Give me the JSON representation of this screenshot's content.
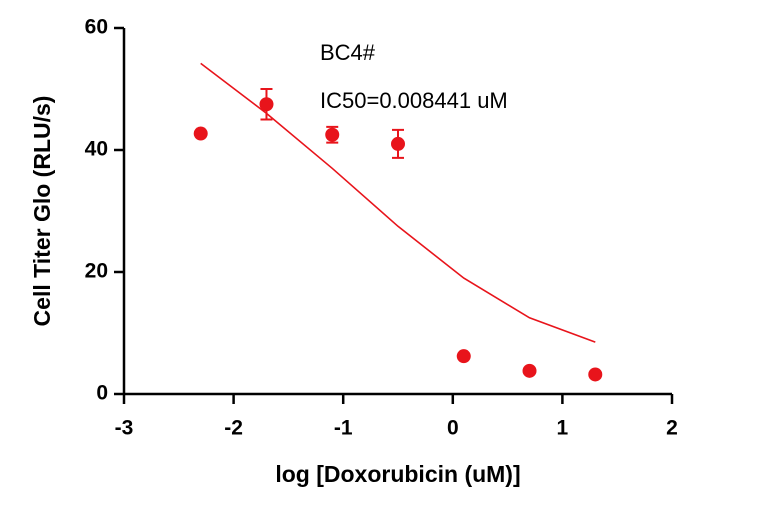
{
  "chart_data": {
    "type": "scatter",
    "x_label": "log [Doxorubicin (uM)]",
    "y_label": "Cell Titer Glo (RLU/s)",
    "annotations": [
      "BC4#",
      "IC50=0.008441 uM"
    ],
    "color": "#e8141b",
    "xlim": [
      -3,
      2
    ],
    "xticks": [
      -3,
      -2,
      -1,
      0,
      1,
      2
    ],
    "ylim": [
      0,
      60
    ],
    "yticks": [
      0,
      20,
      40,
      60
    ],
    "x": [
      -2.3,
      -1.7,
      -1.1,
      -0.5,
      0.1,
      0.7,
      1.3
    ],
    "values": [
      42.7,
      47.5,
      42.5,
      41,
      6.2,
      3.8,
      3.2
    ],
    "errors": [
      null,
      2.5,
      1.3,
      2.3,
      null,
      null,
      null
    ],
    "fit": {
      "x": [
        -2.3,
        -1.7,
        -1.1,
        -0.5,
        0.1,
        0.7,
        1.3
      ],
      "values": [
        54.2,
        46,
        37,
        27.5,
        19,
        12.5,
        8.5
      ]
    }
  }
}
